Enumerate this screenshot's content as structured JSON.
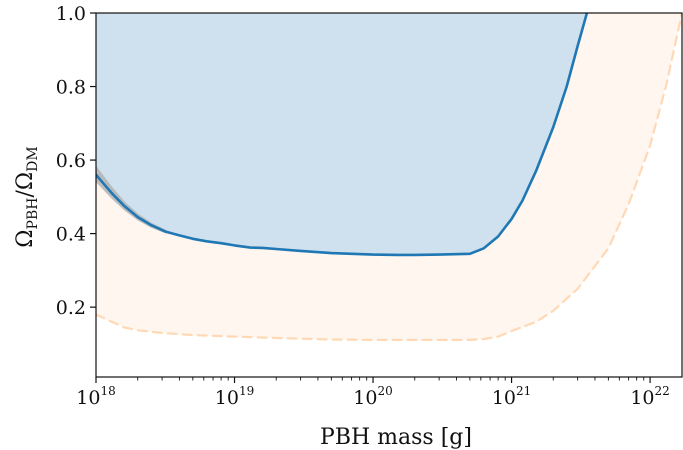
{
  "chart_data": {
    "type": "area",
    "x_scale": "log",
    "xlim": [
      1e+18,
      1.7e+22
    ],
    "ylim": [
      0.01,
      1.0
    ],
    "xlabel": "PBH mass [g]",
    "ylabel": {
      "main": "Ω",
      "sub1": "PBH",
      "sep": "/Ω",
      "sub2": "DM"
    },
    "x_ticks": [
      {
        "base": "10",
        "exp": "18",
        "value": 1e+18
      },
      {
        "base": "10",
        "exp": "19",
        "value": 1e+19
      },
      {
        "base": "10",
        "exp": "20",
        "value": 1e+20
      },
      {
        "base": "10",
        "exp": "21",
        "value": 1e+21
      },
      {
        "base": "10",
        "exp": "22",
        "value": 1e+22
      }
    ],
    "y_ticks": [
      {
        "label": "0.2",
        "value": 0.2
      },
      {
        "label": "0.4",
        "value": 0.4
      },
      {
        "label": "0.6",
        "value": 0.6
      },
      {
        "label": "0.8",
        "value": 0.8
      },
      {
        "label": "1.0",
        "value": 1.0
      }
    ],
    "grid": false,
    "series": [
      {
        "style": "solid",
        "color": "#1f77b4",
        "fill_color": "#cfe1ee",
        "fill": "above",
        "x": [
          1e+18,
          1.3e+18,
          1.6e+18,
          2e+18,
          2.5e+18,
          3.2e+18,
          4e+18,
          5e+18,
          6.3e+18,
          8e+18,
          1e+19,
          1.3e+19,
          1.6e+19,
          2e+19,
          3e+19,
          5e+19,
          7e+19,
          1e+20,
          1.5e+20,
          2e+20,
          3e+20,
          5e+20,
          6.3e+20,
          8e+20,
          1e+21,
          1.2e+21,
          1.5e+21,
          2e+21,
          2.5e+21,
          3e+21,
          3.5e+21
        ],
        "y": [
          0.56,
          0.51,
          0.475,
          0.445,
          0.423,
          0.405,
          0.395,
          0.386,
          0.379,
          0.374,
          0.368,
          0.362,
          0.361,
          0.358,
          0.353,
          0.347,
          0.345,
          0.343,
          0.342,
          0.342,
          0.343,
          0.345,
          0.36,
          0.392,
          0.44,
          0.49,
          0.57,
          0.69,
          0.8,
          0.91,
          1.0
        ]
      },
      {
        "style": "dashed",
        "color": "#ffd8b5",
        "fill_color": "#fff6ef",
        "fill": "above",
        "x": [
          1e+18,
          1.3e+18,
          1.6e+18,
          2e+18,
          3e+18,
          5e+18,
          1e+19,
          2e+19,
          5e+19,
          1e+20,
          2e+20,
          3e+20,
          5e+20,
          6.3e+20,
          8e+20,
          1e+21,
          1.5e+21,
          2e+21,
          3e+21,
          5e+21,
          7e+21,
          1e+22,
          1.3e+22,
          1.7e+22
        ],
        "y": [
          0.18,
          0.16,
          0.145,
          0.137,
          0.13,
          0.124,
          0.12,
          0.116,
          0.112,
          0.111,
          0.111,
          0.111,
          0.111,
          0.113,
          0.12,
          0.135,
          0.16,
          0.19,
          0.25,
          0.36,
          0.48,
          0.64,
          0.8,
          1.0
        ]
      }
    ],
    "band": {
      "color": "#b3b3b3",
      "x": [
        1e+18,
        1.3e+18,
        1.6e+18,
        2e+18,
        2.5e+18,
        3.2e+18
      ],
      "upper": [
        0.585,
        0.528,
        0.488,
        0.455,
        0.43,
        0.41
      ],
      "lower": [
        0.54,
        0.495,
        0.463,
        0.436,
        0.416,
        0.4
      ]
    }
  }
}
